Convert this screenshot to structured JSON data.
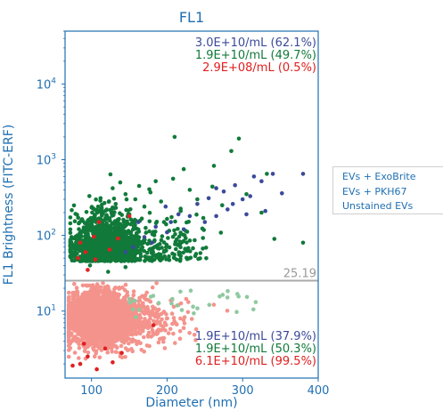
{
  "chart_data": {
    "type": "scatter",
    "title": "FL1",
    "xlabel": "Diameter (nm)",
    "ylabel": "FL1 Brightness (FITC-ERF)",
    "xlim": [
      65,
      400
    ],
    "ylim": [
      1.3,
      50000
    ],
    "yscale": "log",
    "xticks": [
      "100",
      "200",
      "300",
      "400"
    ],
    "yticks": [
      {
        "value": 10,
        "base": "10",
        "exp": "1"
      },
      {
        "value": 100,
        "base": "10",
        "exp": "2"
      },
      {
        "value": 1000,
        "base": "10",
        "exp": "3"
      },
      {
        "value": 10000,
        "base": "10",
        "exp": "4"
      }
    ],
    "threshold": {
      "value": 25.19,
      "label": "25.19",
      "color": "#aaaaaa"
    },
    "upper_annotations": [
      {
        "text": "3.0E+10/mL (62.1%)",
        "color": "#3b4a9a"
      },
      {
        "text": "1.9E+10/mL (49.7%)",
        "color": "#117a3a"
      },
      {
        "text": "2.9E+08/mL (0.5%)",
        "color": "#e02020"
      }
    ],
    "lower_annotations": [
      {
        "text": "1.9E+10/mL (37.9%)",
        "color": "#3b4a9a"
      },
      {
        "text": "1.9E+10/mL (50.3%)",
        "color": "#117a3a"
      },
      {
        "text": "6.1E+10/mL (99.5%)",
        "color": "#e02020"
      }
    ],
    "series": [
      {
        "name": "EVs + ExoBrite",
        "color": "#3b4a9a",
        "points": [
          [
            200,
            110
          ],
          [
            230,
            180
          ],
          [
            255,
            310
          ],
          [
            265,
            420
          ],
          [
            275,
            380
          ],
          [
            290,
            460
          ],
          [
            300,
            300
          ],
          [
            315,
            600
          ],
          [
            325,
            520
          ],
          [
            340,
            650
          ],
          [
            352,
            360
          ],
          [
            380,
            650
          ],
          [
            280,
            220
          ],
          [
            240,
            260
          ],
          [
            215,
            190
          ],
          [
            185,
            130
          ],
          [
            162,
            150
          ],
          [
            170,
            95
          ],
          [
            250,
            150
          ],
          [
            310,
            330
          ],
          [
            330,
            210
          ],
          [
            198,
            240
          ],
          [
            222,
            120
          ],
          [
            265,
            180
          ],
          [
            287,
            260
          ],
          [
            305,
            190
          ],
          [
            180,
            80
          ],
          [
            155,
            70
          ],
          [
            145,
            60
          ],
          [
            205,
            150
          ]
        ]
      },
      {
        "name": "EVs + PKH67",
        "color": "#117a3a",
        "points": [
          [
            97,
            120
          ],
          [
            104,
            220
          ],
          [
            112,
            310
          ],
          [
            121,
            175
          ],
          [
            128,
            420
          ],
          [
            132,
            260
          ],
          [
            138,
            500
          ],
          [
            145,
            350
          ],
          [
            150,
            190
          ],
          [
            158,
            300
          ],
          [
            163,
            450
          ],
          [
            170,
            240
          ],
          [
            178,
            370
          ],
          [
            185,
            520
          ],
          [
            192,
            280
          ],
          [
            200,
            165
          ],
          [
            208,
            560
          ],
          [
            218,
            210
          ],
          [
            222,
            750
          ],
          [
            230,
            400
          ],
          [
            240,
            300
          ],
          [
            248,
            170
          ],
          [
            260,
            440
          ],
          [
            273,
            250
          ],
          [
            285,
            1300
          ],
          [
            295,
            1900
          ],
          [
            305,
            350
          ],
          [
            325,
            200
          ],
          [
            332,
            650
          ],
          [
            342,
            90
          ],
          [
            380,
            80
          ],
          [
            210,
            2000
          ],
          [
            262,
            830
          ],
          [
            117,
            92
          ],
          [
            125,
            640
          ],
          [
            140,
            80
          ],
          [
            152,
            110
          ],
          [
            101,
            70
          ],
          [
            90,
            55
          ],
          [
            108,
            155
          ],
          [
            114,
            48
          ],
          [
            133,
            68
          ],
          [
            98,
            40
          ],
          [
            122,
            33
          ],
          [
            145,
            38
          ]
        ]
      },
      {
        "name": "Unstained EVs",
        "color": "#e02020",
        "points": [
          [
            85,
            80
          ],
          [
            92,
            60
          ],
          [
            95,
            35
          ],
          [
            82,
            50
          ],
          [
            103,
            96
          ],
          [
            105,
            48
          ],
          [
            124,
            65
          ],
          [
            135,
            91
          ],
          [
            150,
            180
          ],
          [
            110,
            150
          ],
          [
            90,
            3.7
          ],
          [
            118,
            3.2
          ],
          [
            128,
            2.1
          ],
          [
            85,
            2
          ],
          [
            107,
            1.7
          ],
          [
            75,
            1.9
          ],
          [
            182,
            6.5
          ],
          [
            140,
            2.8
          ],
          [
            95,
            2.5
          ]
        ]
      }
    ],
    "legend": {
      "entries": [
        "EVs + ExoBrite",
        "EVs + PKH67",
        "Unstained EVs"
      ],
      "position": "outside-right"
    }
  }
}
